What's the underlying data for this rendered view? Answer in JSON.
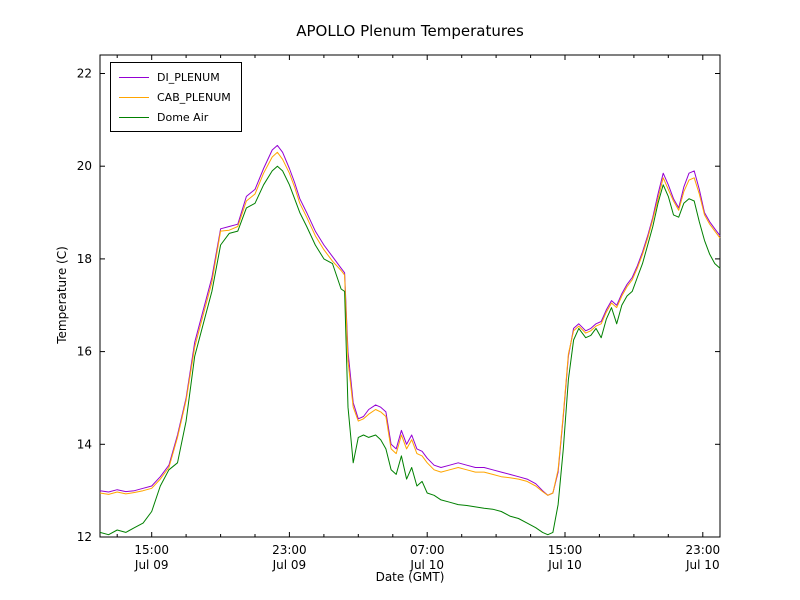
{
  "chart_data": {
    "type": "line",
    "title": "APOLLO Plenum Temperatures",
    "xlabel": "Date (GMT)",
    "ylabel": "Temperature (C)",
    "grid": false,
    "legend_position": "upper-left",
    "x_unit": "hours from 12:00 Jul 09 (GMT), read from axis ticks",
    "xlim": [
      0,
      36
    ],
    "ylim": [
      12,
      22.4
    ],
    "xticks": [
      {
        "pos": 3,
        "time": "15:00",
        "date": "Jul 09"
      },
      {
        "pos": 11,
        "time": "23:00",
        "date": "Jul 09"
      },
      {
        "pos": 19,
        "time": "07:00",
        "date": "Jul 10"
      },
      {
        "pos": 27,
        "time": "15:00",
        "date": "Jul 10"
      },
      {
        "pos": 35,
        "time": "23:00",
        "date": "Jul 10"
      }
    ],
    "xminor": [
      1,
      5,
      7,
      9,
      13,
      15,
      17,
      21,
      23,
      25,
      29,
      31,
      33
    ],
    "yticks": [
      {
        "pos": 12,
        "label": "12"
      },
      {
        "pos": 14,
        "label": "14"
      },
      {
        "pos": 16,
        "label": "16"
      },
      {
        "pos": 18,
        "label": "18"
      },
      {
        "pos": 20,
        "label": "20"
      },
      {
        "pos": 22,
        "label": "22"
      }
    ],
    "x": [
      0,
      0.5,
      1,
      1.5,
      2,
      2.5,
      3,
      3.5,
      4,
      4.5,
      5,
      5.5,
      6,
      6.5,
      7,
      7.5,
      8,
      8.5,
      9,
      9.5,
      10,
      10.3,
      10.6,
      11,
      11.3,
      11.6,
      12,
      12.5,
      13,
      13.5,
      14,
      14.2,
      14.4,
      14.7,
      15,
      15.3,
      15.6,
      16,
      16.3,
      16.6,
      16.9,
      17.2,
      17.5,
      17.8,
      18.1,
      18.4,
      18.7,
      19,
      19.4,
      19.8,
      20.3,
      20.8,
      21.3,
      21.8,
      22.3,
      22.8,
      23.3,
      23.8,
      24.3,
      24.8,
      25.3,
      25.7,
      26,
      26.3,
      26.6,
      26.9,
      27.2,
      27.5,
      27.8,
      28.2,
      28.5,
      28.8,
      29.1,
      29.4,
      29.7,
      30,
      30.3,
      30.6,
      30.9,
      31.2,
      31.5,
      31.8,
      32.1,
      32.4,
      32.7,
      33,
      33.3,
      33.6,
      33.9,
      34.2,
      34.5,
      34.8,
      35.1,
      35.4,
      35.7,
      36
    ],
    "series": [
      {
        "name": "DI_PLENUM",
        "color": "#9400d3",
        "values": [
          13.0,
          12.97,
          13.02,
          12.98,
          13.0,
          13.05,
          13.1,
          13.3,
          13.55,
          14.2,
          15.0,
          16.2,
          16.9,
          17.6,
          18.65,
          18.7,
          18.75,
          19.35,
          19.5,
          19.95,
          20.35,
          20.45,
          20.3,
          19.95,
          19.65,
          19.3,
          19.0,
          18.6,
          18.3,
          18.05,
          17.8,
          17.7,
          16.0,
          14.9,
          14.55,
          14.6,
          14.75,
          14.85,
          14.8,
          14.7,
          14.0,
          13.9,
          14.3,
          14.0,
          14.2,
          13.9,
          13.85,
          13.7,
          13.55,
          13.5,
          13.55,
          13.6,
          13.55,
          13.5,
          13.5,
          13.45,
          13.4,
          13.35,
          13.3,
          13.25,
          13.15,
          13.0,
          12.9,
          12.95,
          13.4,
          14.6,
          15.9,
          16.5,
          16.6,
          16.45,
          16.5,
          16.6,
          16.65,
          16.9,
          17.1,
          17.0,
          17.25,
          17.45,
          17.6,
          17.85,
          18.15,
          18.5,
          18.9,
          19.4,
          19.85,
          19.6,
          19.3,
          19.1,
          19.55,
          19.85,
          19.9,
          19.5,
          19.0,
          18.8,
          18.65,
          18.5
        ]
      },
      {
        "name": "CAB_PLENUM",
        "color": "#ffa500",
        "values": [
          12.95,
          12.92,
          12.97,
          12.93,
          12.96,
          13.0,
          13.05,
          13.25,
          13.5,
          14.15,
          14.95,
          16.1,
          16.8,
          17.5,
          18.6,
          18.62,
          18.7,
          19.25,
          19.4,
          19.85,
          20.2,
          20.3,
          20.15,
          19.85,
          19.55,
          19.2,
          18.9,
          18.5,
          18.2,
          17.95,
          17.75,
          17.65,
          15.8,
          14.8,
          14.5,
          14.55,
          14.65,
          14.75,
          14.7,
          14.6,
          13.9,
          13.8,
          14.2,
          13.9,
          14.1,
          13.8,
          13.75,
          13.6,
          13.45,
          13.4,
          13.45,
          13.5,
          13.45,
          13.4,
          13.4,
          13.35,
          13.3,
          13.28,
          13.25,
          13.2,
          13.1,
          12.98,
          12.9,
          12.95,
          13.45,
          14.65,
          15.95,
          16.45,
          16.55,
          16.4,
          16.45,
          16.55,
          16.6,
          16.85,
          17.05,
          16.95,
          17.2,
          17.4,
          17.55,
          17.8,
          18.1,
          18.45,
          18.85,
          19.3,
          19.75,
          19.5,
          19.25,
          19.05,
          19.45,
          19.7,
          19.75,
          19.4,
          18.95,
          18.75,
          18.6,
          18.45
        ]
      },
      {
        "name": "Dome Air",
        "color": "#008000",
        "values": [
          12.1,
          12.05,
          12.15,
          12.1,
          12.2,
          12.3,
          12.55,
          13.1,
          13.45,
          13.6,
          14.5,
          15.9,
          16.6,
          17.3,
          18.3,
          18.55,
          18.6,
          19.1,
          19.2,
          19.6,
          19.9,
          20.0,
          19.9,
          19.6,
          19.3,
          19.0,
          18.7,
          18.3,
          18.0,
          17.9,
          17.35,
          17.3,
          14.8,
          13.6,
          14.15,
          14.2,
          14.15,
          14.2,
          14.1,
          13.9,
          13.45,
          13.35,
          13.75,
          13.25,
          13.5,
          13.1,
          13.2,
          12.95,
          12.9,
          12.8,
          12.75,
          12.7,
          12.68,
          12.65,
          12.62,
          12.6,
          12.55,
          12.45,
          12.4,
          12.3,
          12.2,
          12.1,
          12.05,
          12.1,
          12.7,
          13.9,
          15.4,
          16.25,
          16.5,
          16.3,
          16.35,
          16.5,
          16.3,
          16.7,
          16.95,
          16.6,
          17.0,
          17.2,
          17.3,
          17.6,
          17.9,
          18.3,
          18.7,
          19.2,
          19.6,
          19.35,
          18.95,
          18.9,
          19.2,
          19.3,
          19.25,
          18.8,
          18.4,
          18.1,
          17.9,
          17.8
        ]
      }
    ]
  }
}
